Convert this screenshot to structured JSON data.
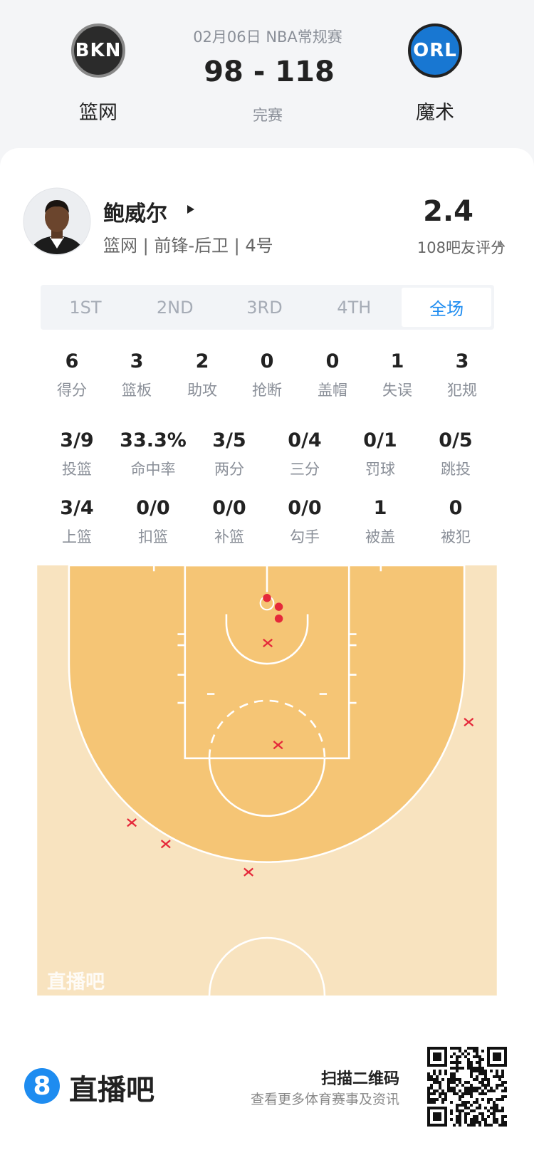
{
  "header": {
    "date_league": "02月06日 NBA常规赛",
    "score": "98 - 118",
    "status": "完赛",
    "home": {
      "logo": "BKN",
      "name": "篮网"
    },
    "away": {
      "logo": "ORL",
      "name": "魔术"
    }
  },
  "player": {
    "name": "鲍威尔",
    "info": "篮网 | 前锋-后卫 | 4号",
    "rating": "2.4",
    "rating_label": "108吧友评分"
  },
  "tabs": [
    "1ST",
    "2ND",
    "3RD",
    "4TH",
    "全场"
  ],
  "active_tab": 4,
  "stats": [
    [
      {
        "value": "6",
        "label": "得分"
      },
      {
        "value": "3",
        "label": "篮板"
      },
      {
        "value": "2",
        "label": "助攻"
      },
      {
        "value": "0",
        "label": "抢断"
      },
      {
        "value": "0",
        "label": "盖帽"
      },
      {
        "value": "1",
        "label": "失误"
      },
      {
        "value": "3",
        "label": "犯规"
      }
    ],
    [
      {
        "value": "3/9",
        "label": "投篮"
      },
      {
        "value": "33.3%",
        "label": "命中率"
      },
      {
        "value": "3/5",
        "label": "两分"
      },
      {
        "value": "0/4",
        "label": "三分"
      },
      {
        "value": "0/1",
        "label": "罚球"
      },
      {
        "value": "0/5",
        "label": "跳投"
      }
    ],
    [
      {
        "value": "3/4",
        "label": "上篮"
      },
      {
        "value": "0/0",
        "label": "扣篮"
      },
      {
        "value": "0/0",
        "label": "补篮"
      },
      {
        "value": "0/0",
        "label": "勾手"
      },
      {
        "value": "1",
        "label": "被盖"
      },
      {
        "value": "0",
        "label": "被犯"
      }
    ]
  ],
  "watermark": "直播吧",
  "footer": {
    "logo": "8",
    "brand": "直播吧",
    "scan": "扫描二维码",
    "more": "查看更多体育赛事及资讯"
  }
}
